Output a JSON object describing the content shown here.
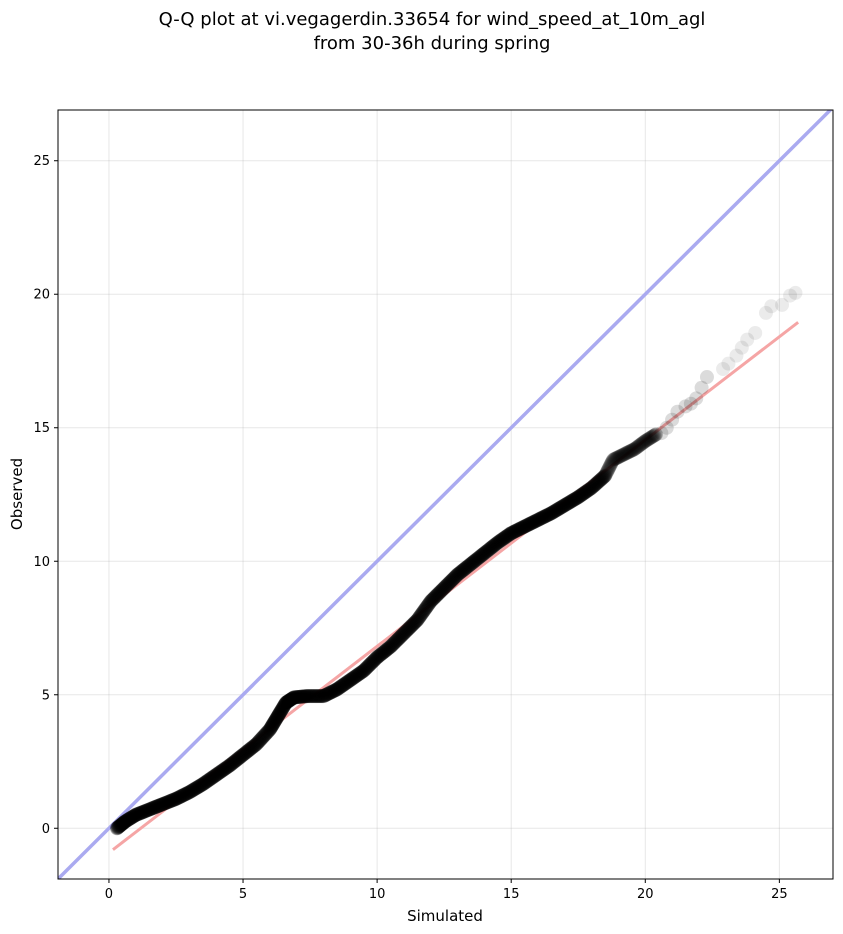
{
  "chart_data": {
    "type": "scatter",
    "title_line1": "Q-Q plot at vi.vegagerdin.33654 for wind_speed_at_10m_agl",
    "title_line2": "from 30-36h during spring",
    "xlabel": "Simulated",
    "ylabel": "Observed",
    "xlim": [
      -1.9,
      27.0
    ],
    "ylim": [
      -1.9,
      26.9
    ],
    "xticks": [
      0,
      5,
      10,
      15,
      20,
      25
    ],
    "yticks": [
      0,
      5,
      10,
      15,
      20,
      25
    ],
    "grid": true,
    "identity_line": {
      "color": "#aaaaf0",
      "from": [
        -1.9,
        -1.9
      ],
      "to": [
        27.0,
        27.0
      ]
    },
    "fit_line": {
      "color": "#f5a5a5",
      "from": [
        0.15,
        -0.8
      ],
      "to": [
        25.7,
        18.95
      ]
    },
    "point_color": "#000000",
    "quantile_curve": [
      [
        0.3,
        0.0
      ],
      [
        0.6,
        0.25
      ],
      [
        1.0,
        0.5
      ],
      [
        1.5,
        0.7
      ],
      [
        2.0,
        0.9
      ],
      [
        2.5,
        1.1
      ],
      [
        3.0,
        1.35
      ],
      [
        3.5,
        1.65
      ],
      [
        4.0,
        2.0
      ],
      [
        4.5,
        2.35
      ],
      [
        5.0,
        2.75
      ],
      [
        5.5,
        3.15
      ],
      [
        6.0,
        3.7
      ],
      [
        6.3,
        4.2
      ],
      [
        6.6,
        4.7
      ],
      [
        6.9,
        4.9
      ],
      [
        7.4,
        4.95
      ],
      [
        8.0,
        4.95
      ],
      [
        8.5,
        5.2
      ],
      [
        9.0,
        5.55
      ],
      [
        9.5,
        5.9
      ],
      [
        10.0,
        6.4
      ],
      [
        10.5,
        6.8
      ],
      [
        11.0,
        7.3
      ],
      [
        11.5,
        7.8
      ],
      [
        12.0,
        8.5
      ],
      [
        12.5,
        9.0
      ],
      [
        13.0,
        9.5
      ],
      [
        13.5,
        9.9
      ],
      [
        14.0,
        10.3
      ],
      [
        14.5,
        10.7
      ],
      [
        15.0,
        11.05
      ],
      [
        15.5,
        11.3
      ],
      [
        16.0,
        11.55
      ],
      [
        16.5,
        11.8
      ],
      [
        17.0,
        12.1
      ],
      [
        17.5,
        12.4
      ],
      [
        18.0,
        12.75
      ],
      [
        18.5,
        13.2
      ],
      [
        18.8,
        13.8
      ],
      [
        19.2,
        14.0
      ],
      [
        19.6,
        14.2
      ],
      [
        20.0,
        14.5
      ],
      [
        20.4,
        14.75
      ]
    ],
    "sparse_points": [
      [
        20.6,
        14.8
      ],
      [
        20.8,
        15.0
      ],
      [
        21.0,
        15.3
      ],
      [
        21.2,
        15.6
      ],
      [
        21.5,
        15.8
      ],
      [
        21.7,
        15.9
      ],
      [
        21.9,
        16.1
      ],
      [
        22.1,
        16.5
      ],
      [
        22.3,
        16.9
      ],
      [
        22.9,
        17.2
      ],
      [
        23.1,
        17.4
      ],
      [
        23.4,
        17.7
      ],
      [
        23.6,
        18.0
      ],
      [
        23.8,
        18.3
      ],
      [
        24.1,
        18.55
      ],
      [
        24.5,
        19.3
      ],
      [
        24.7,
        19.55
      ],
      [
        25.1,
        19.6
      ],
      [
        25.4,
        19.95
      ],
      [
        25.6,
        20.05
      ]
    ]
  }
}
